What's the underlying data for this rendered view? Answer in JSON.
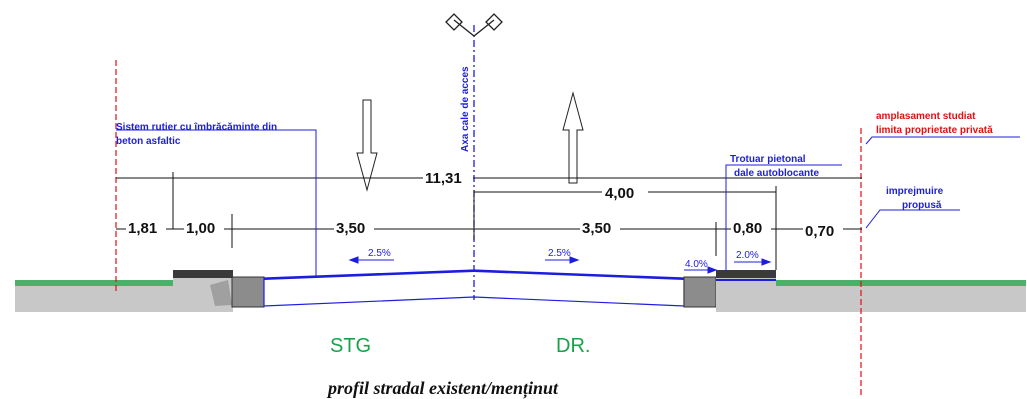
{
  "axis_label": "Axa cale de acces",
  "road_system_label": [
    "Sistem rutier cu îmbrăcăminte din",
    "beton asfaltic"
  ],
  "sidewalk_label": [
    "Trotuar pietonal",
    "dale autoblocante"
  ],
  "property_label": [
    "amplasament studiat",
    "limita proprietate privată"
  ],
  "fence_label": [
    "imprejmuire",
    "propusă"
  ],
  "dimensions": {
    "total": "11,31",
    "right_part": "4,00",
    "left_green": "1,81",
    "left_sidewalk": "1,00",
    "left_lane": "3,50",
    "right_lane": "3,50",
    "right_sidewalk": "0,80",
    "right_green": "0,70"
  },
  "slopes": {
    "left_lane": "2.5%",
    "right_lane": "2.5%",
    "curb": "4.0%",
    "sidewalk": "2.0%"
  },
  "side_labels": {
    "left": "STG",
    "right": "DR."
  },
  "caption": "profil stradal existent/menținut",
  "colors": {
    "dimension_blue": "#1d1ddf",
    "limit_red": "#e01010",
    "green_label": "#16a34a",
    "grass": "#4caf6a",
    "ground": "#c8c8c8",
    "curb": "#8c8c8c",
    "asphalt_dark": "#3a3a3a"
  }
}
